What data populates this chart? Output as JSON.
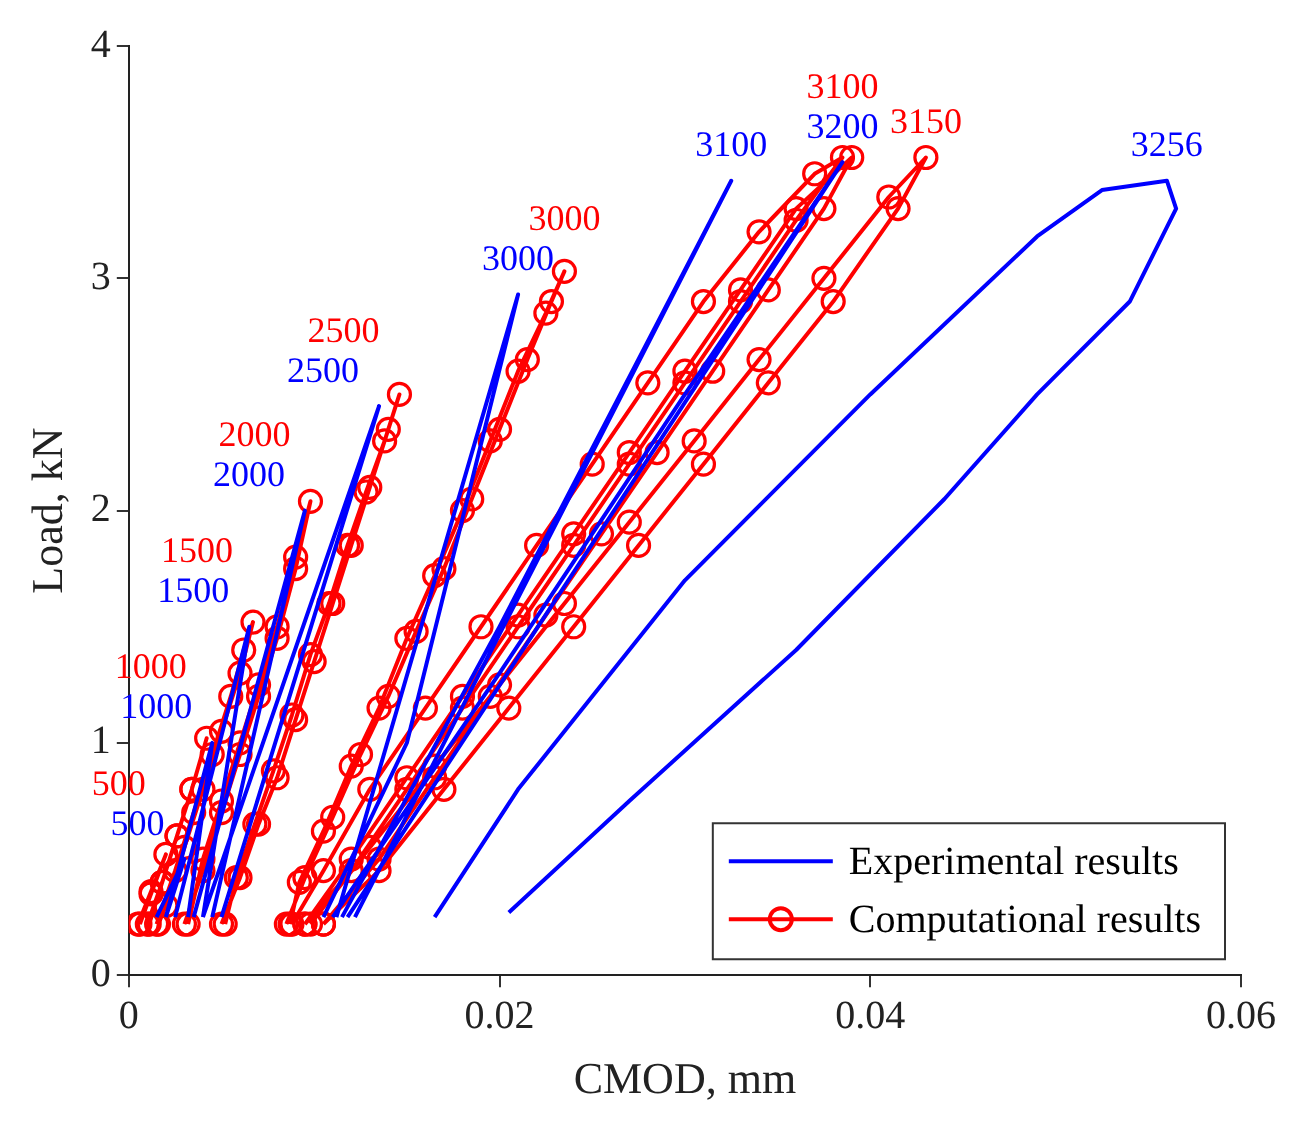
{
  "chart_data": {
    "type": "line",
    "xlabel": "CMOD, mm",
    "ylabel": "Load, kN",
    "xlim": [
      0,
      0.06
    ],
    "ylim": [
      0,
      4
    ],
    "xticks": [
      0,
      0.02,
      0.04,
      0.06
    ],
    "yticks": [
      0,
      1,
      2,
      3,
      4
    ],
    "grid": false,
    "legend": "bottom right",
    "annotations": [
      {
        "text": "500",
        "x": 0.003,
        "y": 0.5
      },
      {
        "text": "1000",
        "x": 0.0045,
        "y": 1.0
      },
      {
        "text": "1500",
        "x": 0.0065,
        "y": 1.5
      },
      {
        "text": "2000",
        "x": 0.0095,
        "y": 2.0
      },
      {
        "text": "2500",
        "x": 0.0135,
        "y": 2.45
      },
      {
        "text": "3000",
        "x": 0.021,
        "y": 2.93
      },
      {
        "text": "3100",
        "x": 0.0325,
        "y": 3.42
      },
      {
        "text": "3200",
        "x": 0.0385,
        "y": 3.5
      },
      {
        "text": "3256",
        "x": 0.056,
        "y": 3.42
      },
      {
        "text": "500",
        "x": 0.002,
        "y": 0.52
      },
      {
        "text": "1000",
        "x": 0.0042,
        "y": 1.02
      },
      {
        "text": "1500",
        "x": 0.0067,
        "y": 1.52
      },
      {
        "text": "2000",
        "x": 0.0098,
        "y": 2.04
      },
      {
        "text": "2500",
        "x": 0.0146,
        "y": 2.5
      },
      {
        "text": "3000",
        "x": 0.0235,
        "y": 3.03
      },
      {
        "text": "3100",
        "x": 0.0385,
        "y": 3.52
      },
      {
        "text": "3150",
        "x": 0.043,
        "y": 3.52
      }
    ],
    "series": [
      {
        "name": "Experimental results",
        "color": "#0000ff",
        "marker": "none",
        "x": [
          0.0015,
          0.003,
          0.002,
          null,
          0.002,
          0.0045,
          0.0032,
          null,
          0.0025,
          0.0065,
          0.004,
          null,
          0.0035,
          0.0095,
          0.0045,
          null,
          0.004,
          0.0135,
          0.005,
          null,
          0.0105,
          0.015,
          0.021,
          0.0112,
          null,
          0.0115,
          0.02,
          0.0325,
          0.0122,
          null,
          0.011,
          0.02,
          0.03,
          0.0385,
          0.0118,
          null,
          0.0165,
          0.021,
          0.03,
          0.04,
          0.049,
          0.0525,
          0.056,
          0.0565,
          0.054,
          0.049,
          0.044,
          0.036,
          0.027,
          0.0205
        ],
        "values": [
          0.25,
          0.5,
          0.25,
          null,
          0.25,
          1.0,
          0.25,
          null,
          0.25,
          1.5,
          0.25,
          null,
          0.25,
          2.0,
          0.25,
          null,
          0.25,
          2.45,
          0.25,
          null,
          0.25,
          1.0,
          2.93,
          0.25,
          null,
          0.25,
          1.5,
          3.42,
          0.25,
          null,
          0.25,
          1.3,
          2.5,
          3.5,
          0.25,
          null,
          0.25,
          0.8,
          1.7,
          2.5,
          3.18,
          3.38,
          3.42,
          3.3,
          2.9,
          2.5,
          2.05,
          1.4,
          0.75,
          0.27
        ]
      },
      {
        "name": "Computational results",
        "color": "#ff0000",
        "marker": "circle",
        "x": [
          0.0005,
          0.0012,
          0.002,
          0.0012,
          0.0006,
          null,
          0.001,
          0.0018,
          0.0026,
          0.0034,
          0.0042,
          0.0034,
          0.0026,
          0.0018,
          0.0011,
          null,
          0.0015,
          0.0025,
          0.0035,
          0.0045,
          0.0055,
          0.0062,
          0.0067,
          0.006,
          0.005,
          0.004,
          0.003,
          0.002,
          0.0016,
          null,
          0.003,
          0.004,
          0.005,
          0.006,
          0.007,
          0.008,
          0.009,
          0.0098,
          0.009,
          0.008,
          0.007,
          0.006,
          0.005,
          0.004,
          0.0032,
          null,
          0.005,
          0.006,
          0.007,
          0.008,
          0.009,
          0.01,
          0.011,
          0.012,
          0.013,
          0.014,
          0.0146,
          0.0138,
          0.0128,
          0.0118,
          0.0108,
          0.0098,
          0.0088,
          0.0078,
          0.0068,
          0.0058,
          0.0052,
          null,
          0.0085,
          0.0095,
          0.011,
          0.0125,
          0.014,
          0.0155,
          0.017,
          0.0185,
          0.02,
          0.0215,
          0.0228,
          0.0235,
          0.0225,
          0.021,
          0.0195,
          0.018,
          0.0165,
          0.015,
          0.0135,
          0.012,
          0.0105,
          0.0092,
          0.0087,
          null,
          0.0088,
          0.0105,
          0.013,
          0.016,
          0.019,
          0.022,
          0.025,
          0.028,
          0.031,
          0.034,
          0.037,
          0.0385,
          0.036,
          0.033,
          0.03,
          0.027,
          0.024,
          0.021,
          0.018,
          0.015,
          0.012,
          0.0095,
          null,
          0.0095,
          0.012,
          0.015,
          0.018,
          0.021,
          0.024,
          0.027,
          0.03,
          0.033,
          0.036,
          0.039,
          0.0375,
          0.0345,
          0.0315,
          0.0285,
          0.0255,
          0.0225,
          0.0195,
          0.0165,
          0.0135,
          0.0105,
          null,
          0.0098,
          0.013,
          0.0165,
          0.02,
          0.0235,
          0.027,
          0.0305,
          0.034,
          0.0375,
          0.041,
          0.043,
          0.0415,
          0.038,
          0.0345,
          0.031,
          0.0275,
          0.024,
          0.0205,
          0.017,
          0.0135,
          0.0105
        ],
        "values": [
          0.22,
          0.36,
          0.52,
          0.35,
          0.22,
          null,
          0.22,
          0.4,
          0.6,
          0.8,
          1.02,
          0.8,
          0.6,
          0.4,
          0.22,
          null,
          0.22,
          0.45,
          0.7,
          0.95,
          1.2,
          1.4,
          1.52,
          1.3,
          1.05,
          0.8,
          0.55,
          0.3,
          0.22,
          null,
          0.22,
          0.45,
          0.7,
          0.95,
          1.2,
          1.45,
          1.75,
          2.04,
          1.8,
          1.5,
          1.25,
          1.0,
          0.75,
          0.5,
          0.22,
          null,
          0.22,
          0.42,
          0.65,
          0.85,
          1.1,
          1.35,
          1.6,
          1.85,
          2.1,
          2.35,
          2.5,
          2.3,
          2.08,
          1.85,
          1.6,
          1.38,
          1.12,
          0.88,
          0.65,
          0.42,
          0.22,
          null,
          0.22,
          0.42,
          0.68,
          0.95,
          1.2,
          1.48,
          1.75,
          2.05,
          2.35,
          2.65,
          2.9,
          3.03,
          2.85,
          2.6,
          2.3,
          2.0,
          1.72,
          1.45,
          1.15,
          0.9,
          0.62,
          0.4,
          0.22,
          null,
          0.22,
          0.45,
          0.8,
          1.15,
          1.5,
          1.85,
          2.2,
          2.55,
          2.9,
          3.2,
          3.45,
          3.52,
          3.25,
          2.9,
          2.55,
          2.2,
          1.85,
          1.5,
          1.15,
          0.8,
          0.45,
          0.22,
          null,
          0.22,
          0.5,
          0.85,
          1.2,
          1.55,
          1.9,
          2.25,
          2.6,
          2.95,
          3.3,
          3.52,
          3.3,
          2.95,
          2.6,
          2.25,
          1.9,
          1.55,
          1.2,
          0.85,
          0.5,
          0.22,
          null,
          0.22,
          0.55,
          0.9,
          1.25,
          1.6,
          1.95,
          2.3,
          2.65,
          3.0,
          3.35,
          3.52,
          3.3,
          2.9,
          2.55,
          2.2,
          1.85,
          1.5,
          1.15,
          0.8,
          0.45,
          0.22
        ]
      }
    ]
  }
}
